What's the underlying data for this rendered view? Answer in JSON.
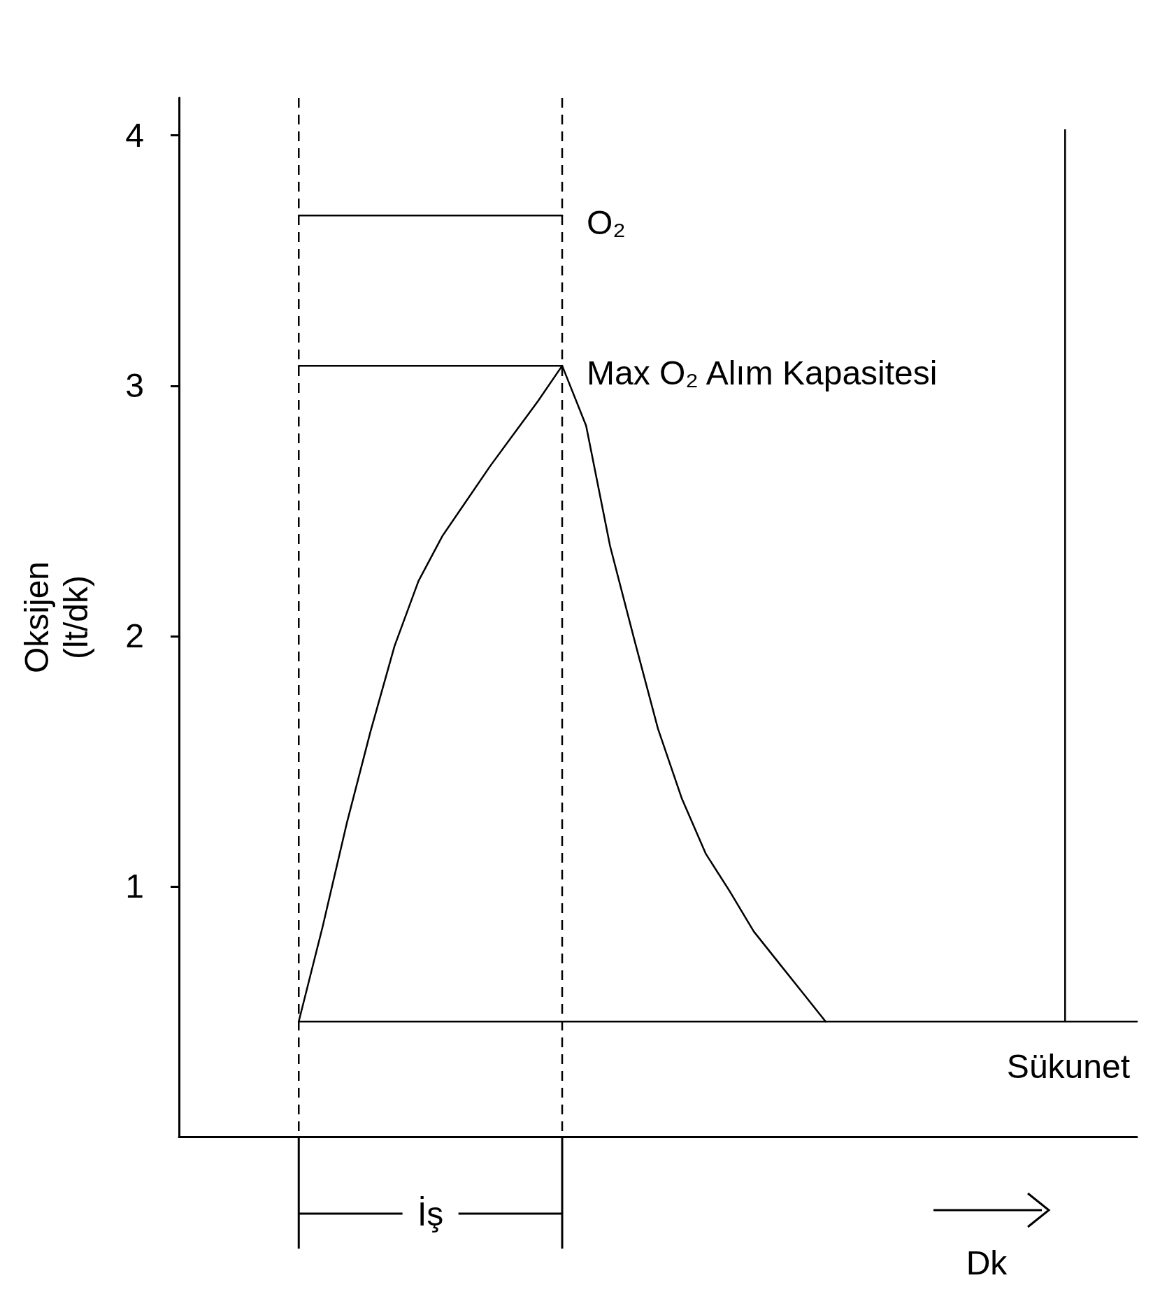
{
  "chart_data": {
    "type": "line",
    "ylabel": "Oksijen (lt/dk)",
    "xlabel": "Dk",
    "categories": [
      null,
      null,
      null,
      null,
      null,
      null,
      null,
      null,
      null,
      null,
      null,
      null,
      null,
      null,
      null,
      null,
      null,
      null,
      null,
      null,
      null,
      null,
      null,
      null,
      null,
      null,
      null,
      null,
      null,
      null,
      null,
      null,
      null,
      null,
      null,
      null,
      null,
      null,
      null,
      null,
      null
    ],
    "ylim": [
      0,
      4.15
    ],
    "yticks": [
      1,
      2,
      3,
      4
    ],
    "tick_labels": "y",
    "grid": false,
    "marker": "none",
    "line_style": "solid",
    "series": [
      {
        "color": "#000000",
        "values": [
          null,
          null,
          null,
          null,
          null,
          0.46,
          0.84,
          1.25,
          1.62,
          1.96,
          2.22,
          2.4,
          2.54,
          2.68,
          2.81,
          2.94,
          3.08,
          2.84,
          2.36,
          1.99,
          1.63,
          1.35,
          1.13,
          0.98,
          0.82,
          0.7,
          0.58,
          0.46,
          null,
          null,
          null,
          null,
          null,
          null,
          null,
          null,
          null,
          null,
          null,
          null,
          null
        ]
      },
      {
        "color": "#000000",
        "values": [
          null,
          null,
          null,
          null,
          null,
          0.46,
          0.46,
          0.46,
          0.46,
          0.46,
          0.46,
          0.46,
          0.46,
          0.46,
          0.46,
          0.46,
          0.46,
          0.46,
          0.46,
          0.46,
          0.46,
          0.46,
          0.46,
          0.46,
          0.46,
          0.46,
          0.46,
          0.46,
          0.46,
          0.46,
          0.46,
          0.46,
          0.46,
          0.46,
          0.46,
          0.46,
          0.46,
          0.46,
          0.46,
          0.46,
          0.46
        ]
      },
      {
        "color": "#000000",
        "values": [
          null,
          null,
          null,
          null,
          null,
          3.68,
          3.68,
          3.68,
          3.68,
          3.68,
          3.68,
          3.68,
          3.68,
          3.68,
          3.68,
          3.68,
          3.68,
          null,
          null,
          null,
          null,
          null,
          null,
          null,
          null,
          null,
          null,
          null,
          null,
          null,
          null,
          null,
          null,
          null,
          null,
          null,
          null,
          null,
          null,
          null,
          null
        ]
      },
      {
        "color": "#000000",
        "values": [
          null,
          null,
          null,
          null,
          null,
          3.08,
          3.08,
          3.08,
          3.08,
          3.08,
          3.08,
          3.08,
          3.08,
          3.08,
          3.08,
          3.08,
          3.08,
          null,
          null,
          null,
          null,
          null,
          null,
          null,
          null,
          null,
          null,
          null,
          null,
          null,
          null,
          null,
          null,
          null,
          null,
          null,
          null,
          null,
          null,
          null,
          null
        ]
      }
    ],
    "annotations": [
      "O₂",
      "Max O₂ Alım Kapasitesi",
      "Sükunet",
      "İş"
    ]
  }
}
